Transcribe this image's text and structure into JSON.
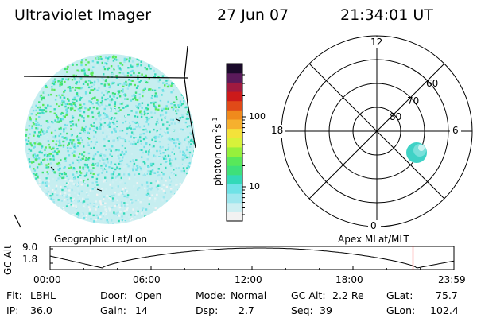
{
  "header": {
    "title": "Ultraviolet Imager",
    "date": "27 Jun 07",
    "time": "21:34:01 UT"
  },
  "colorbar": {
    "label": "photon cm",
    "label_exp1": "-2",
    "label_s": "s",
    "label_exp2": "-1",
    "ticks": [
      {
        "label": "100",
        "value": 100
      },
      {
        "label": "10",
        "value": 10
      }
    ],
    "scale": "log",
    "colors": [
      "#f2f2f2",
      "#cdeff2",
      "#9fe7ee",
      "#6fe2e6",
      "#33d9b8",
      "#3ee07a",
      "#58e85a",
      "#96f03c",
      "#d7f23a",
      "#f4e23a",
      "#f6b02e",
      "#f08a1c",
      "#e04a18",
      "#cc1a1a",
      "#a01a40",
      "#5a1a5a",
      "#1a0a2a"
    ]
  },
  "polar": {
    "mlt_labels": [
      "12",
      "6",
      "0",
      "18"
    ],
    "mlat_labels": [
      "80",
      "70",
      "60"
    ]
  },
  "labels": {
    "geo": "Geographic Lat/Lon",
    "apex": "Apex MLat/MLT"
  },
  "altitude_plot": {
    "ylabel": "GC Alt",
    "yticks": [
      "9.0",
      "1.8"
    ],
    "xticks": [
      "00:00",
      "06:00",
      "12:00",
      "18:00",
      "23:59"
    ],
    "current_time_color": "#ff0000"
  },
  "info": {
    "flt_label": "Flt:",
    "flt_value": "LBHL",
    "ip_label": "IP:",
    "ip_value": "36.0",
    "door_label": "Door:",
    "door_value": "Open",
    "gain_label": "Gain:",
    "gain_value": "14",
    "mode_label": "Mode:",
    "mode_value": "Normal",
    "dsp_label": "Dsp:",
    "dsp_value": "2.7",
    "gcalt_label": "GC Alt:",
    "gcalt_value": "2.2 Re",
    "seq_label": "Seq:",
    "seq_value": "39",
    "glat_label": "GLat:",
    "glat_value": "75.7",
    "glon_label": "GLon:",
    "glon_value": "102.4"
  }
}
